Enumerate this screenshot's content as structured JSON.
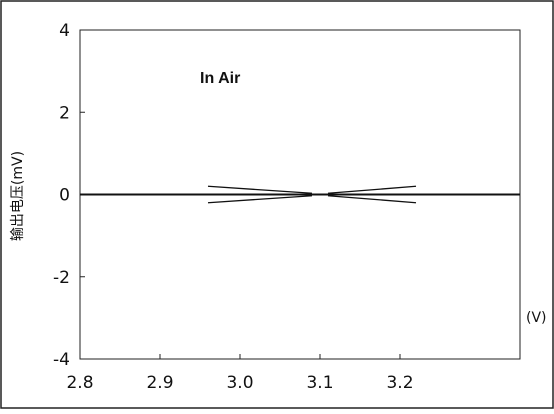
{
  "chart_data": {
    "type": "line",
    "title": "",
    "annotation": "In Air",
    "ylabel": "输出电压(mV)",
    "xlabel": "(V)",
    "xlim": [
      2.8,
      3.35
    ],
    "ylim": [
      -4,
      4
    ],
    "x_ticks": [
      {
        "value": 2.8,
        "label": "2.8"
      },
      {
        "value": 2.9,
        "label": "2.9"
      },
      {
        "value": 3.0,
        "label": "3.0"
      },
      {
        "value": 3.1,
        "label": "3.1"
      },
      {
        "value": 3.2,
        "label": "3.2"
      }
    ],
    "y_ticks": [
      {
        "value": 4,
        "label": "4"
      },
      {
        "value": 2,
        "label": "2"
      },
      {
        "value": 0,
        "label": "0"
      },
      {
        "value": -2,
        "label": "-2"
      },
      {
        "value": -4,
        "label": "-4"
      }
    ],
    "grid": false,
    "series": [
      {
        "values_x": [
          2.8,
          3.35
        ],
        "values_y": [
          0,
          0
        ]
      },
      {
        "values_x": [
          2.96,
          3.09
        ],
        "values_y": [
          0.2,
          0.03
        ]
      },
      {
        "values_x": [
          2.96,
          3.09
        ],
        "values_y": [
          -0.2,
          -0.03
        ]
      },
      {
        "values_x": [
          3.11,
          3.22
        ],
        "values_y": [
          0.03,
          0.2
        ]
      },
      {
        "values_x": [
          3.11,
          3.22
        ],
        "values_y": [
          -0.03,
          -0.2
        ]
      }
    ]
  }
}
